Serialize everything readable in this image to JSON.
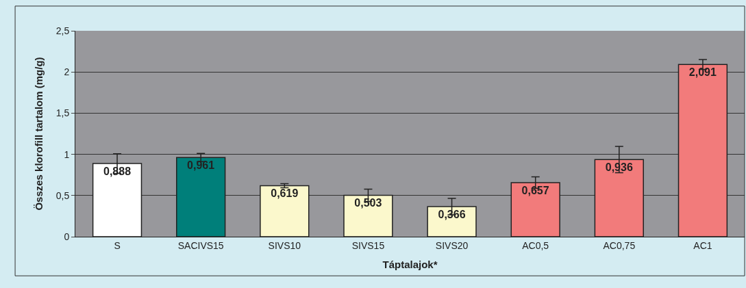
{
  "chart_data": {
    "type": "bar",
    "xlabel": "Táptalajok*",
    "ylabel": "Összes klorofill tartalom (mg/g)",
    "categories": [
      "S",
      "SACIVS15",
      "SIVS10",
      "SIVS15",
      "SIVS20",
      "AC0,5",
      "AC0,75",
      "AC1"
    ],
    "values": [
      0.888,
      0.961,
      0.619,
      0.503,
      0.366,
      0.657,
      0.936,
      2.091
    ],
    "value_labels": [
      "0,888",
      "0,961",
      "0,619",
      "0,503",
      "0,366",
      "0,657",
      "0,936",
      "2,091"
    ],
    "errors": [
      0.12,
      0.05,
      0.025,
      0.075,
      0.1,
      0.07,
      0.16,
      0.06
    ],
    "colors": [
      "#ffffff",
      "#007f7a",
      "#fbf8cc",
      "#fbf8cc",
      "#fbf8cc",
      "#f27b7b",
      "#f27b7b",
      "#f27b7b"
    ],
    "ylim": [
      0,
      2.5
    ],
    "yticks": [
      {
        "value": 0,
        "label": "0"
      },
      {
        "value": 0.5,
        "label": "0,5"
      },
      {
        "value": 1,
        "label": "1"
      },
      {
        "value": 1.5,
        "label": "1,5"
      },
      {
        "value": 2,
        "label": "2"
      },
      {
        "value": 2.5,
        "label": "2,5"
      }
    ],
    "grid": "y"
  }
}
